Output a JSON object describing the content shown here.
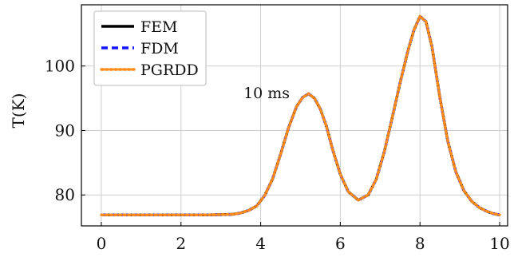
{
  "chart_data": {
    "type": "line",
    "title": "",
    "xlabel": "",
    "ylabel": "T(K)",
    "xlim": [
      -0.5,
      10.2
    ],
    "ylim": [
      75.2,
      109.5
    ],
    "grid": true,
    "legend_position": "top-left",
    "x_ticks": [
      0,
      2,
      4,
      6,
      8,
      10
    ],
    "y_ticks": [
      80,
      90,
      100
    ],
    "annotations": [
      {
        "text": "10 ms",
        "x": 4.15,
        "y": 95.0
      }
    ],
    "series": [
      {
        "name": "FEM",
        "color": "#000000",
        "style": "solid",
        "x": [
          0,
          0.5,
          1,
          1.5,
          2,
          2.5,
          3,
          3.3,
          3.5,
          3.7,
          3.9,
          4.1,
          4.3,
          4.5,
          4.7,
          4.9,
          5.05,
          5.2,
          5.35,
          5.5,
          5.65,
          5.8,
          6.0,
          6.2,
          6.45,
          6.7,
          6.9,
          7.1,
          7.3,
          7.5,
          7.7,
          7.85,
          8.0,
          8.15,
          8.3,
          8.5,
          8.7,
          8.9,
          9.1,
          9.3,
          9.5,
          9.7,
          9.85,
          10.0
        ],
        "y": [
          76.9,
          76.9,
          76.9,
          76.9,
          76.9,
          76.9,
          76.95,
          77.0,
          77.2,
          77.6,
          78.3,
          79.9,
          82.5,
          86.3,
          90.4,
          93.7,
          95.1,
          95.7,
          95.0,
          93.3,
          90.7,
          87.2,
          83.2,
          80.5,
          79.2,
          80.0,
          82.4,
          86.6,
          91.9,
          97.4,
          102.4,
          105.6,
          107.7,
          106.9,
          103.0,
          95.1,
          88.3,
          83.6,
          80.7,
          79.0,
          78.0,
          77.4,
          77.1,
          76.9
        ]
      },
      {
        "name": "FDM",
        "color": "#1414ff",
        "style": "dashed",
        "x": [
          0,
          0.5,
          1,
          1.5,
          2,
          2.5,
          3,
          3.3,
          3.5,
          3.7,
          3.9,
          4.1,
          4.3,
          4.5,
          4.7,
          4.9,
          5.05,
          5.2,
          5.35,
          5.5,
          5.65,
          5.8,
          6.0,
          6.2,
          6.45,
          6.7,
          6.9,
          7.1,
          7.3,
          7.5,
          7.7,
          7.85,
          8.0,
          8.15,
          8.3,
          8.5,
          8.7,
          8.9,
          9.1,
          9.3,
          9.5,
          9.7,
          9.85,
          10.0
        ],
        "y": [
          76.9,
          76.9,
          76.9,
          76.9,
          76.9,
          76.9,
          76.95,
          77.0,
          77.2,
          77.6,
          78.3,
          79.9,
          82.5,
          86.3,
          90.4,
          93.7,
          95.1,
          95.7,
          95.0,
          93.3,
          90.7,
          87.2,
          83.2,
          80.5,
          79.2,
          80.0,
          82.4,
          86.6,
          91.9,
          97.4,
          102.4,
          105.6,
          107.7,
          106.9,
          103.0,
          95.1,
          88.3,
          83.6,
          80.7,
          79.0,
          78.0,
          77.4,
          77.1,
          76.9
        ]
      },
      {
        "name": "PGRDD",
        "color": "#ff8c1a",
        "style": "dotted",
        "x": [
          0,
          0.5,
          1,
          1.5,
          2,
          2.5,
          3,
          3.3,
          3.5,
          3.7,
          3.9,
          4.1,
          4.3,
          4.5,
          4.7,
          4.9,
          5.05,
          5.2,
          5.35,
          5.5,
          5.65,
          5.8,
          6.0,
          6.2,
          6.45,
          6.7,
          6.9,
          7.1,
          7.3,
          7.5,
          7.7,
          7.85,
          8.0,
          8.15,
          8.3,
          8.5,
          8.7,
          8.9,
          9.1,
          9.3,
          9.5,
          9.7,
          9.85,
          10.0
        ],
        "y": [
          76.9,
          76.9,
          76.9,
          76.9,
          76.9,
          76.9,
          76.95,
          77.0,
          77.2,
          77.6,
          78.3,
          79.9,
          82.5,
          86.3,
          90.4,
          93.7,
          95.1,
          95.7,
          95.0,
          93.3,
          90.7,
          87.2,
          83.2,
          80.5,
          79.2,
          80.0,
          82.4,
          86.6,
          91.9,
          97.4,
          102.4,
          105.6,
          107.7,
          106.9,
          103.0,
          95.1,
          88.3,
          83.6,
          80.7,
          79.0,
          78.0,
          77.4,
          77.1,
          76.9
        ]
      }
    ]
  }
}
